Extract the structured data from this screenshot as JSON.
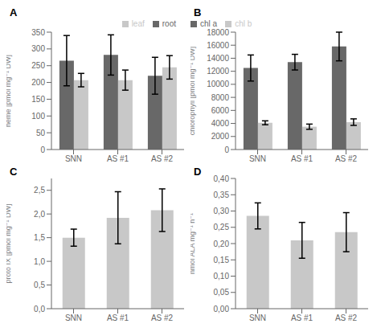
{
  "chart_data": [
    {
      "type": "bar",
      "title": "A",
      "categories": [
        "SNN",
        "AS #1",
        "AS #2"
      ],
      "series": [
        {
          "name": "root",
          "color": "#686868",
          "values": [
            265,
            282,
            220
          ],
          "errors": [
            75,
            60,
            55
          ]
        },
        {
          "name": "leaf",
          "color": "#c8c8c8",
          "values": [
            207,
            207,
            245
          ],
          "errors": [
            20,
            30,
            35
          ]
        }
      ],
      "ylabel": "heme [pmol mg⁻¹ DW]",
      "ylim": [
        0,
        350
      ],
      "yticks": [
        0,
        50,
        100,
        150,
        200,
        250,
        300,
        350
      ],
      "legend": "upper right",
      "grid": false
    },
    {
      "type": "bar",
      "title": "B",
      "categories": [
        "SNN",
        "AS #1",
        "AS #2"
      ],
      "series": [
        {
          "name": "chl a",
          "color": "#686868",
          "values": [
            12500,
            13400,
            15800
          ],
          "errors": [
            2000,
            1200,
            2200
          ]
        },
        {
          "name": "chl b",
          "color": "#c8c8c8",
          "values": [
            4100,
            3500,
            4200
          ],
          "errors": [
            300,
            400,
            500
          ]
        }
      ],
      "ylabel": "chlorophyll [pmol mg⁻¹ DW]",
      "ylim": [
        0,
        18000
      ],
      "yticks": [
        0,
        2000,
        4000,
        6000,
        8000,
        10000,
        12000,
        14000,
        16000,
        18000
      ],
      "legend": "upper left",
      "grid": false
    },
    {
      "type": "bar",
      "title": "C",
      "categories": [
        "SNN",
        "AS #1",
        "AS #2"
      ],
      "series": [
        {
          "color": "#c8c8c8",
          "values": [
            1.5,
            1.92,
            2.08
          ],
          "errors": [
            0.18,
            0.55,
            0.45
          ]
        }
      ],
      "ylabel": "proto IX [pmol mg⁻¹ DW]",
      "ylim": [
        0,
        2.75
      ],
      "yticks": [
        {
          "value": 0.0,
          "label": "0,0"
        },
        {
          "value": 0.5,
          "label": "0,5"
        },
        {
          "value": 1.0,
          "label": "1,0"
        },
        {
          "value": 1.5,
          "label": "1,5"
        },
        {
          "value": 2.0,
          "label": "2,0"
        },
        {
          "value": 2.5,
          "label": "2,5"
        }
      ],
      "grid": false
    },
    {
      "type": "bar",
      "title": "D",
      "categories": [
        "SNN",
        "AS #1",
        "AS #2"
      ],
      "series": [
        {
          "color": "#c8c8c8",
          "values": [
            0.285,
            0.21,
            0.235
          ],
          "errors": [
            0.04,
            0.055,
            0.06
          ]
        }
      ],
      "ylabel": "nmol ALA mg⁻¹ h⁻¹",
      "ylim": [
        0,
        0.4
      ],
      "yticks": [
        {
          "value": 0.0,
          "label": "0,00"
        },
        {
          "value": 0.05,
          "label": "0,05"
        },
        {
          "value": 0.1,
          "label": "0,10"
        },
        {
          "value": 0.15,
          "label": "0,15"
        },
        {
          "value": 0.2,
          "label": "0,20"
        },
        {
          "value": 0.25,
          "label": "0,25"
        },
        {
          "value": 0.3,
          "label": "0,30"
        },
        {
          "value": 0.35,
          "label": "0,35"
        },
        {
          "value": 0.4,
          "label": "0,40"
        }
      ],
      "grid": false
    }
  ]
}
